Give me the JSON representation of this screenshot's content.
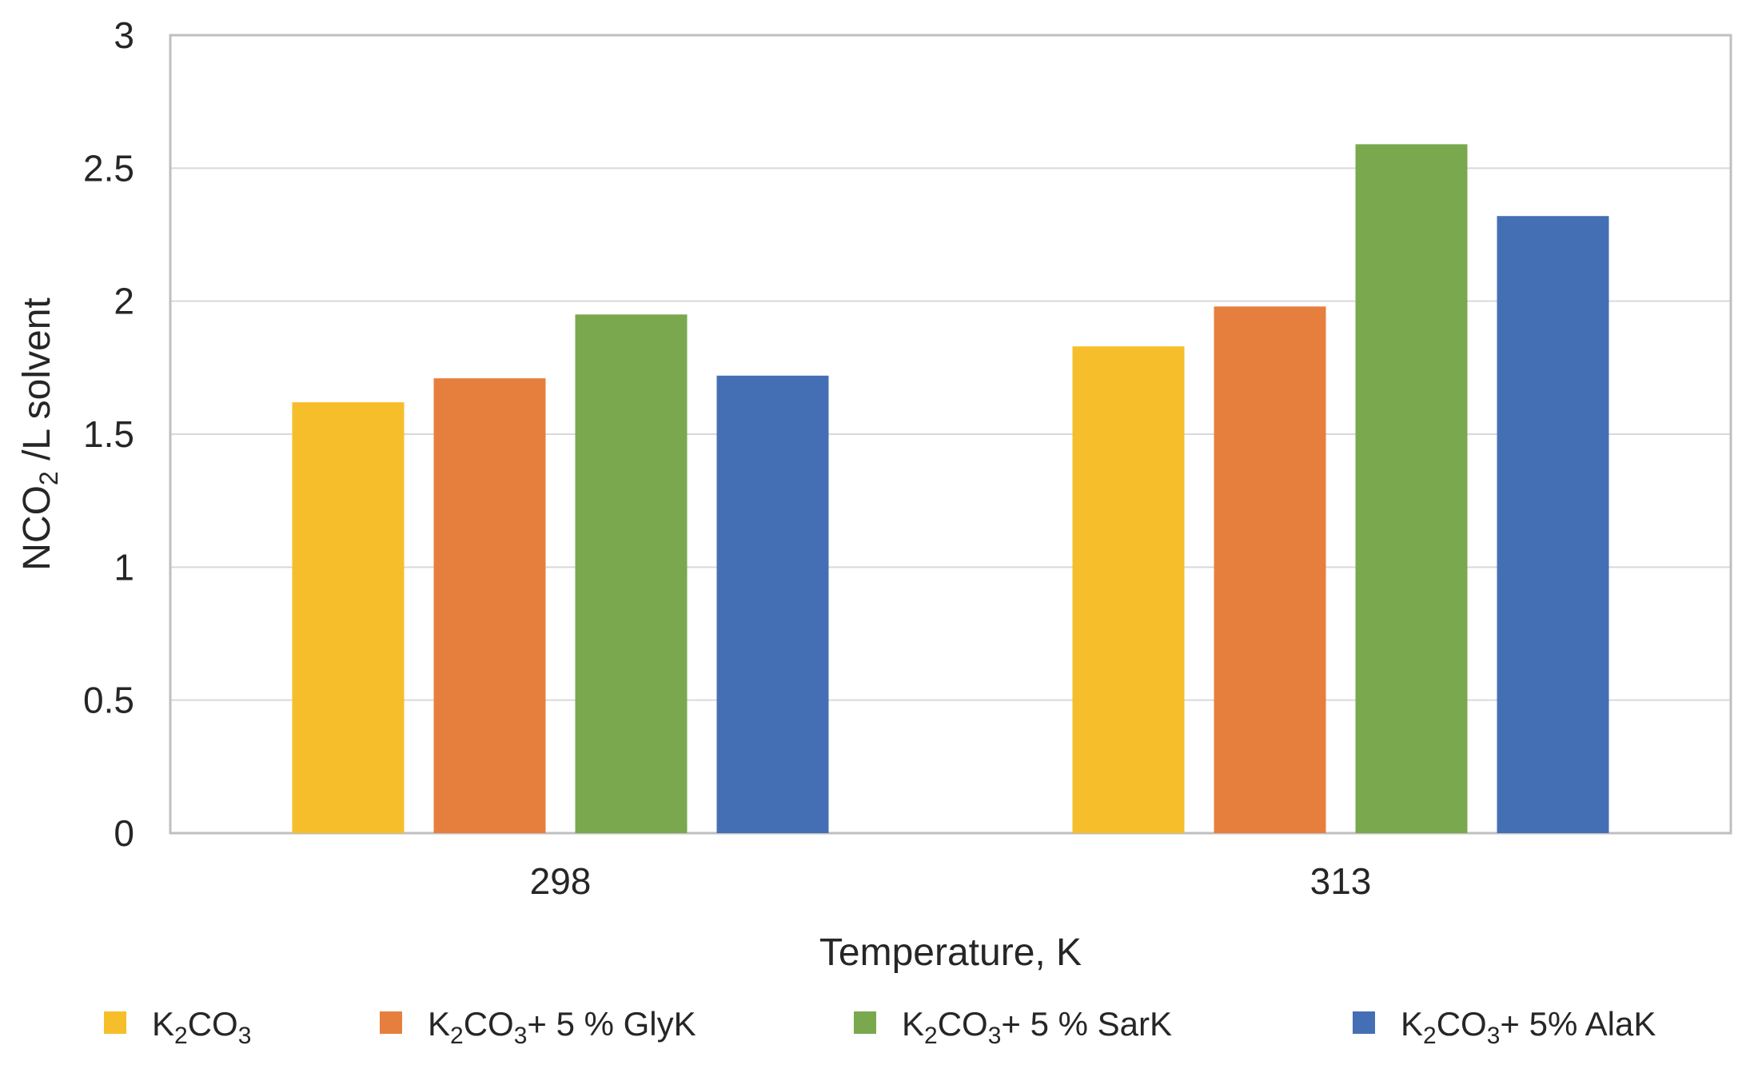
{
  "chart_data": {
    "type": "bar",
    "title": "",
    "xlabel": "Temperature, K",
    "ylabel": {
      "prefix": "NCO",
      "subscript": "2",
      "suffix": " /L solvent"
    },
    "categories": [
      "298",
      "313"
    ],
    "ylim": [
      0,
      3
    ],
    "yticks": [
      "0",
      "0.5",
      "1",
      "1.5",
      "2",
      "2.5",
      "3"
    ],
    "grid": true,
    "legend_position": "bottom",
    "series": [
      {
        "name": "K2CO3",
        "label_parts": [
          [
            "K",
            ""
          ],
          [
            "2",
            "sub"
          ],
          [
            "CO",
            ""
          ],
          [
            "3",
            "sub"
          ]
        ],
        "color": "#F7BE2B",
        "values": [
          1.62,
          1.83
        ]
      },
      {
        "name": "K2CO3 + 5 % GlyK",
        "label_parts": [
          [
            "K",
            ""
          ],
          [
            "2",
            "sub"
          ],
          [
            "CO",
            ""
          ],
          [
            "3",
            "sub"
          ],
          [
            "+ 5 % GlyK",
            ""
          ]
        ],
        "color": "#E67F3E",
        "values": [
          1.71,
          1.98
        ]
      },
      {
        "name": "K2CO3 + 5 % SarK",
        "label_parts": [
          [
            "K",
            ""
          ],
          [
            "2",
            "sub"
          ],
          [
            "CO",
            ""
          ],
          [
            "3",
            "sub"
          ],
          [
            "+ 5 % SarK",
            ""
          ]
        ],
        "color": "#7AA84E",
        "values": [
          1.95,
          2.59
        ]
      },
      {
        "name": "K2CO3 + 5% AlaK",
        "label_parts": [
          [
            "K",
            ""
          ],
          [
            "2",
            "sub"
          ],
          [
            "CO",
            ""
          ],
          [
            "3",
            "sub"
          ],
          [
            "+ 5% AlaK",
            ""
          ]
        ],
        "color": "#456FB5",
        "values": [
          1.72,
          2.32
        ]
      }
    ]
  }
}
